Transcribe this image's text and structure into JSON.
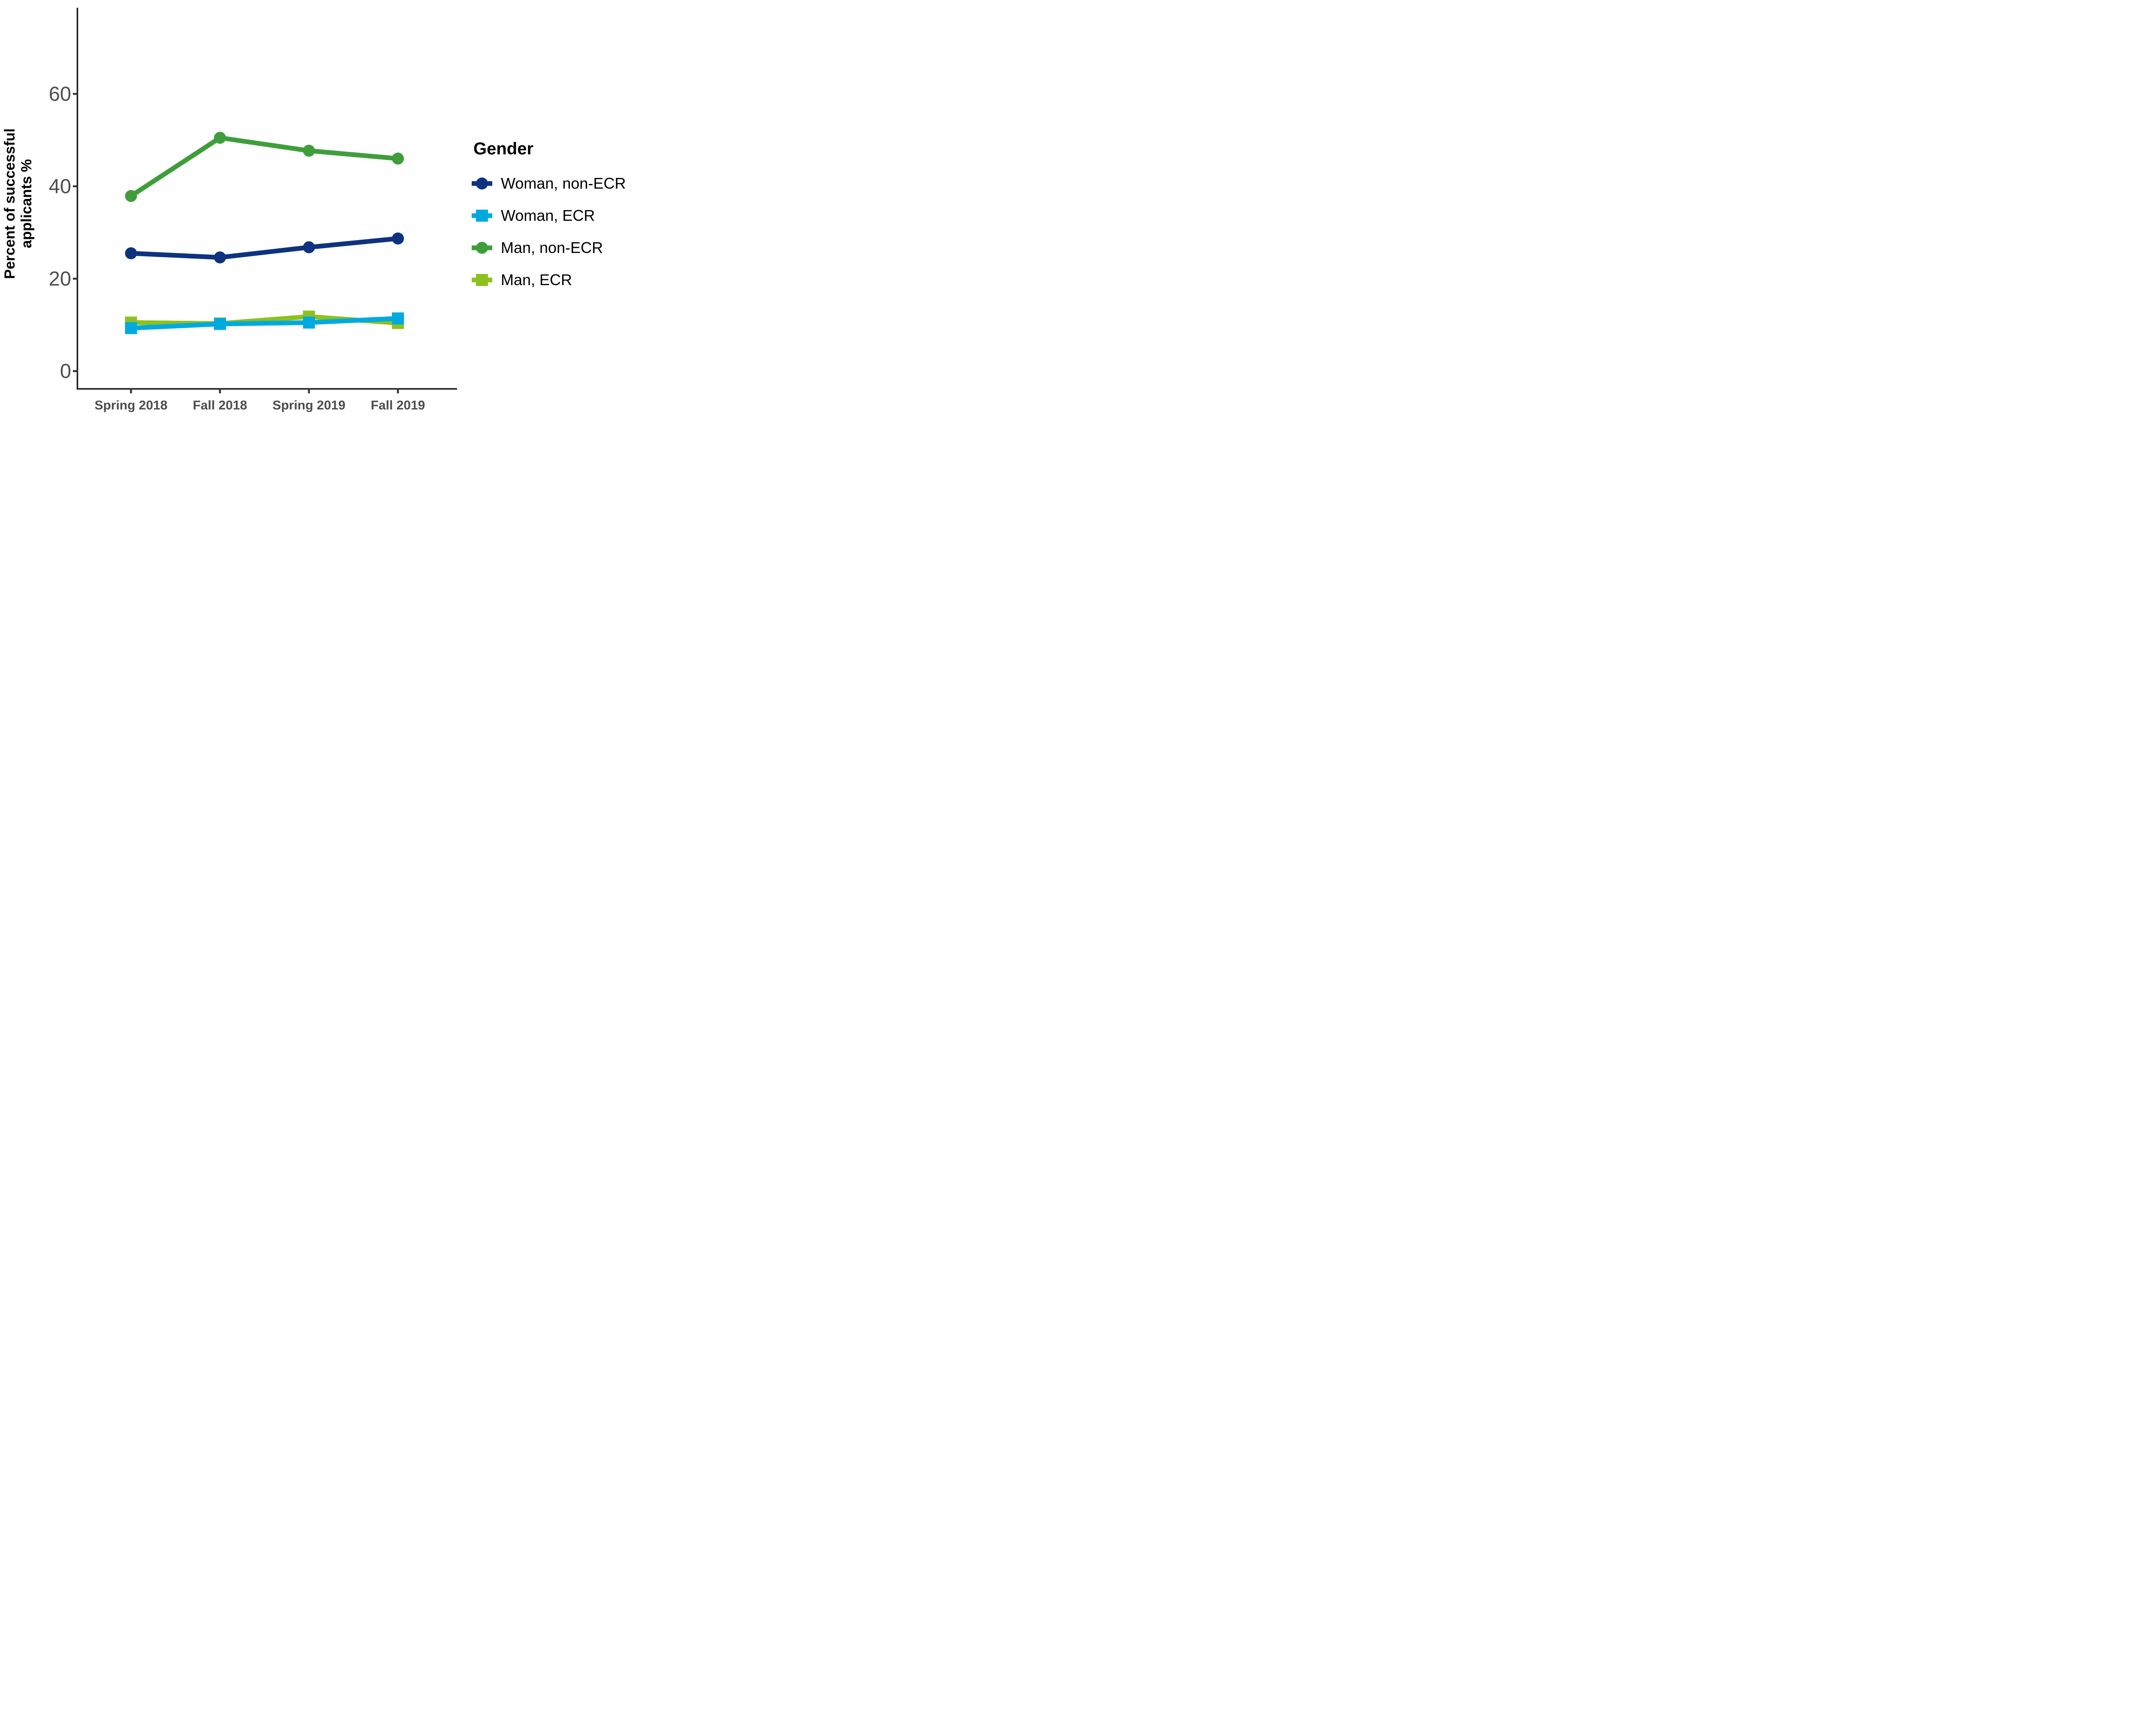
{
  "chart_data": {
    "type": "line",
    "title": "",
    "xlabel": "",
    "ylabel_lines": [
      "Percent of successful",
      "applicants %"
    ],
    "categories": [
      "Spring 2018",
      "Fall 2018",
      "Spring 2019",
      "Fall 2019"
    ],
    "y_ticks": [
      0,
      20,
      40,
      60
    ],
    "ylim": [
      0,
      78
    ],
    "grid": false,
    "legend_title": "Gender",
    "legend_position": "right",
    "series": [
      {
        "name": "Woman, non-ECR",
        "marker": "circle",
        "color": "#0D337F",
        "values": [
          25.5,
          24.6,
          26.8,
          28.7
        ]
      },
      {
        "name": "Woman, ECR",
        "marker": "square",
        "color": "#00A9E0",
        "values": [
          9.3,
          10.2,
          10.5,
          11.4
        ]
      },
      {
        "name": "Man, non-ECR",
        "marker": "circle",
        "color": "#3F9E3B",
        "values": [
          37.9,
          50.5,
          47.7,
          46.0
        ]
      },
      {
        "name": "Man, ECR",
        "marker": "square",
        "color": "#8CC11E",
        "values": [
          10.5,
          10.3,
          11.8,
          10.4
        ]
      }
    ],
    "draw_order": [
      3,
      1,
      2,
      0
    ],
    "axis_color": "#1a1a1a",
    "tick_color": "#333333",
    "tick_label_color": "#4d4d4d"
  }
}
